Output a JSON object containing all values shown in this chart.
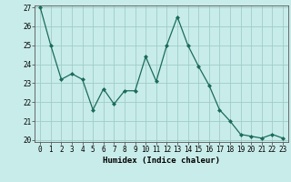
{
  "x": [
    0,
    1,
    2,
    3,
    4,
    5,
    6,
    7,
    8,
    9,
    10,
    11,
    12,
    13,
    14,
    15,
    16,
    17,
    18,
    19,
    20,
    21,
    22,
    23
  ],
  "y": [
    27,
    25,
    23.2,
    23.5,
    23.2,
    21.6,
    22.7,
    21.9,
    22.6,
    22.6,
    24.4,
    23.1,
    25.0,
    26.5,
    25.0,
    23.9,
    22.9,
    21.6,
    21.0,
    20.3,
    20.2,
    20.1,
    20.3,
    20.1
  ],
  "line_color": "#1a6b5a",
  "marker": "D",
  "marker_size": 2,
  "bg_color": "#c8ecea",
  "grid_color": "#a0ccc8",
  "xlabel": "Humidex (Indice chaleur)",
  "ylim": [
    20,
    27
  ],
  "xlim": [
    -0.5,
    23.5
  ],
  "yticks": [
    20,
    21,
    22,
    23,
    24,
    25,
    26,
    27
  ],
  "xticks": [
    0,
    1,
    2,
    3,
    4,
    5,
    6,
    7,
    8,
    9,
    10,
    11,
    12,
    13,
    14,
    15,
    16,
    17,
    18,
    19,
    20,
    21,
    22,
    23
  ],
  "tick_fontsize": 5.5,
  "label_fontsize": 6.5
}
